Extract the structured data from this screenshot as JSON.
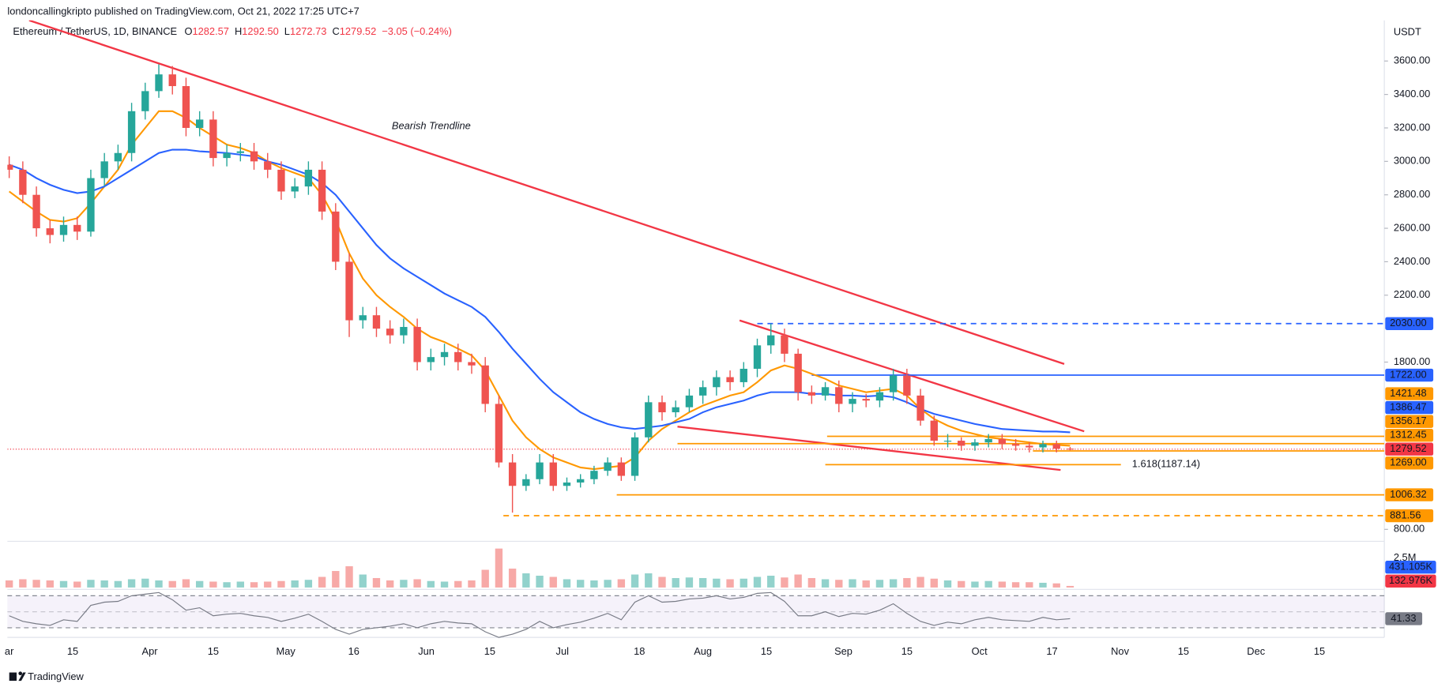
{
  "header": {
    "publisher": "londoncallingkripto published on TradingView.com, Oct 21, 2022 17:25 UTC+7",
    "symbol": "Ethereum / TetherUS, 1D, BINANCE",
    "ohlc": [
      {
        "label": "O",
        "value": "1282.57"
      },
      {
        "label": "H",
        "value": "1292.50"
      },
      {
        "label": "L",
        "value": "1272.73"
      },
      {
        "label": "C",
        "value": "1279.52"
      }
    ],
    "change": "−3.05 (−0.24%)"
  },
  "footer": {
    "brand": "TradingView"
  },
  "chart_data": {
    "type": "candlestick",
    "y_unit_label": "USDT",
    "annotation": "Bearish Trendline",
    "x": [
      0,
      3,
      6,
      9,
      12,
      15,
      18,
      21,
      24,
      27,
      30,
      33,
      36,
      39,
      42,
      45,
      48,
      51,
      54,
      57,
      60,
      63,
      66,
      69,
      72,
      75,
      78,
      81,
      84,
      87,
      90,
      93,
      96,
      99,
      102,
      105,
      108,
      111,
      114,
      117,
      120,
      123,
      126,
      129,
      132,
      135,
      138,
      141,
      144,
      147,
      150,
      153,
      156,
      159,
      162,
      165,
      168,
      171,
      174,
      177,
      180,
      183,
      186,
      189,
      192,
      195,
      198,
      201,
      204,
      207,
      210,
      213,
      216,
      219,
      222,
      225,
      228,
      231,
      234
    ],
    "open": [
      2980,
      2950,
      2800,
      2600,
      2560,
      2620,
      2580,
      2900,
      3000,
      3050,
      3300,
      3420,
      3520,
      3450,
      3200,
      3250,
      3020,
      3050,
      3060,
      3000,
      2950,
      2820,
      2850,
      2950,
      2700,
      2400,
      2050,
      2080,
      2000,
      1960,
      2010,
      1800,
      1830,
      1860,
      1800,
      1780,
      1550,
      1200,
      1060,
      1100,
      1200,
      1060,
      1080,
      1100,
      1150,
      1200,
      1120,
      1350,
      1560,
      1500,
      1530,
      1600,
      1650,
      1710,
      1680,
      1760,
      1900,
      1960,
      1850,
      1620,
      1600,
      1650,
      1550,
      1580,
      1570,
      1620,
      1720,
      1600,
      1450,
      1330,
      1330,
      1300,
      1320,
      1340,
      1310,
      1300,
      1290,
      1310,
      1282.57
    ],
    "high": [
      3030,
      3000,
      2850,
      2650,
      2670,
      2670,
      2950,
      3050,
      3100,
      3350,
      3470,
      3580,
      3570,
      3500,
      3300,
      3300,
      3100,
      3110,
      3110,
      3050,
      3000,
      2900,
      3000,
      3000,
      2750,
      2450,
      2130,
      2130,
      2050,
      2060,
      2060,
      1880,
      1910,
      1910,
      1850,
      1830,
      1600,
      1250,
      1130,
      1250,
      1250,
      1110,
      1130,
      1180,
      1230,
      1230,
      1380,
      1600,
      1600,
      1570,
      1640,
      1690,
      1750,
      1750,
      1800,
      1940,
      2030,
      2000,
      1880,
      1660,
      1680,
      1690,
      1620,
      1610,
      1650,
      1760,
      1760,
      1640,
      1480,
      1370,
      1350,
      1340,
      1370,
      1370,
      1340,
      1320,
      1330,
      1330,
      1292.5
    ],
    "low": [
      2900,
      2750,
      2550,
      2510,
      2520,
      2530,
      2550,
      2850,
      2950,
      3000,
      3250,
      3380,
      3400,
      3150,
      3150,
      2970,
      2970,
      3000,
      2950,
      2900,
      2770,
      2780,
      2800,
      2650,
      2350,
      1950,
      2000,
      1950,
      1910,
      1910,
      1750,
      1750,
      1780,
      1750,
      1730,
      1500,
      1170,
      900,
      1030,
      1070,
      1030,
      1030,
      1050,
      1070,
      1120,
      1090,
      1090,
      1320,
      1450,
      1470,
      1500,
      1550,
      1600,
      1630,
      1650,
      1710,
      1850,
      1800,
      1570,
      1550,
      1570,
      1500,
      1500,
      1530,
      1530,
      1570,
      1550,
      1420,
      1300,
      1290,
      1270,
      1270,
      1290,
      1280,
      1270,
      1260,
      1260,
      1260,
      1272.73
    ],
    "close": [
      2950,
      2800,
      2600,
      2560,
      2620,
      2580,
      2900,
      3000,
      3050,
      3300,
      3420,
      3520,
      3450,
      3200,
      3250,
      3020,
      3050,
      3060,
      3000,
      2950,
      2820,
      2850,
      2950,
      2700,
      2400,
      2050,
      2080,
      2000,
      1960,
      2010,
      1800,
      1830,
      1860,
      1800,
      1780,
      1550,
      1200,
      1060,
      1100,
      1200,
      1060,
      1080,
      1100,
      1150,
      1200,
      1120,
      1350,
      1560,
      1500,
      1530,
      1600,
      1650,
      1710,
      1680,
      1760,
      1900,
      1960,
      1850,
      1620,
      1600,
      1650,
      1550,
      1580,
      1570,
      1620,
      1720,
      1600,
      1450,
      1330,
      1330,
      1300,
      1320,
      1340,
      1310,
      1300,
      1290,
      1310,
      1282.57,
      1279.52
    ],
    "up_color": "#26a69a",
    "down_color": "#ef5350",
    "last_price_color": "#f23645",
    "moving_averages": [
      {
        "color": "#ff9800",
        "values": [
          2820,
          2760,
          2700,
          2650,
          2640,
          2660,
          2750,
          2850,
          2950,
          3100,
          3200,
          3300,
          3300,
          3260,
          3200,
          3150,
          3100,
          3080,
          3050,
          3000,
          2960,
          2930,
          2900,
          2800,
          2650,
          2450,
          2300,
          2200,
          2130,
          2070,
          2000,
          1950,
          1920,
          1880,
          1840,
          1750,
          1600,
          1450,
          1350,
          1280,
          1230,
          1200,
          1170,
          1160,
          1170,
          1180,
          1230,
          1330,
          1400,
          1450,
          1500,
          1540,
          1570,
          1600,
          1620,
          1680,
          1750,
          1780,
          1760,
          1730,
          1700,
          1660,
          1640,
          1620,
          1630,
          1640,
          1600,
          1520,
          1460,
          1420,
          1390,
          1370,
          1350,
          1340,
          1330,
          1320,
          1310,
          1305,
          1300
        ]
      },
      {
        "color": "#2962ff",
        "values": [
          2980,
          2950,
          2900,
          2860,
          2830,
          2810,
          2820,
          2850,
          2900,
          2950,
          3000,
          3050,
          3070,
          3070,
          3060,
          3055,
          3050,
          3040,
          3030,
          3000,
          2980,
          2950,
          2920,
          2870,
          2800,
          2700,
          2600,
          2500,
          2420,
          2360,
          2310,
          2260,
          2210,
          2170,
          2130,
          2070,
          1980,
          1880,
          1790,
          1700,
          1620,
          1560,
          1500,
          1460,
          1430,
          1410,
          1400,
          1410,
          1420,
          1440,
          1460,
          1500,
          1530,
          1550,
          1570,
          1600,
          1620,
          1620,
          1620,
          1610,
          1610,
          1600,
          1600,
          1595,
          1600,
          1590,
          1560,
          1520,
          1490,
          1470,
          1450,
          1430,
          1415,
          1400,
          1395,
          1390,
          1385,
          1385,
          1380
        ]
      }
    ],
    "trendlines": [
      {
        "color": "#f23645",
        "points": [
          [
            4.4,
            3843
          ],
          [
            232.7,
            1789
          ]
        ]
      },
      {
        "color": "#f23645",
        "points": [
          [
            161.1,
            2049
          ],
          [
            237.1,
            1386
          ]
        ]
      },
      {
        "color": "#f23645",
        "points": [
          [
            147.4,
            1414
          ],
          [
            231.9,
            1155
          ]
        ]
      }
    ],
    "levels": [
      {
        "value": 2030,
        "label": "2030.00",
        "color": "#2962ff",
        "text_color": "#ffffff",
        "start": 165,
        "dashed": true
      },
      {
        "value": 1722,
        "label": "1722.00",
        "color": "#2962ff",
        "text_color": "#ffffff",
        "start": 177
      },
      {
        "value": 1356.17,
        "label": "1356.17",
        "color": "#ff9800",
        "text_color": "#131722",
        "start": 180.4
      },
      {
        "value": 1312.45,
        "label": "1312.45",
        "color": "#ff9800",
        "text_color": "#131722",
        "start": 147.4
      },
      {
        "value": 1269,
        "label": "1269.00",
        "color": "#ff9800",
        "text_color": "#131722",
        "start": 225.8
      },
      {
        "value": 1006.32,
        "label": "1006.32",
        "color": "#ff9800",
        "text_color": "#131722",
        "start": 134
      },
      {
        "value": 881.56,
        "label": "881.56",
        "color": "#ff9800",
        "text_color": "#131722",
        "start": 109,
        "dashed": true
      }
    ],
    "axis_labels": [
      {
        "value": 1421.48,
        "label": "1421.48",
        "color": "#ff9800",
        "text_color": "#131722"
      },
      {
        "value": 1386.47,
        "label": "1386.47",
        "color": "#2962ff",
        "text_color": "#ffffff"
      }
    ],
    "fib": {
      "value": 1187.14,
      "label": "1.618(1187.14)",
      "start": 180,
      "end": 245.2,
      "color": "#ff9800"
    },
    "xlim": [
      -0.4,
      303.3
    ],
    "xticks": [
      {
        "value": 0,
        "label": "ar"
      },
      {
        "value": 14,
        "label": "15"
      },
      {
        "value": 31,
        "label": "Apr"
      },
      {
        "value": 45,
        "label": "15"
      },
      {
        "value": 61,
        "label": "May"
      },
      {
        "value": 76,
        "label": "16"
      },
      {
        "value": 92,
        "label": "Jun"
      },
      {
        "value": 106,
        "label": "15"
      },
      {
        "value": 122,
        "label": "Jul"
      },
      {
        "value": 139,
        "label": "18"
      },
      {
        "value": 153,
        "label": "Aug"
      },
      {
        "value": 167,
        "label": "15"
      },
      {
        "value": 184,
        "label": "Sep"
      },
      {
        "value": 198,
        "label": "15"
      },
      {
        "value": 214,
        "label": "Oct"
      },
      {
        "value": 230,
        "label": "17"
      },
      {
        "value": 245,
        "label": "Nov"
      },
      {
        "value": 259,
        "label": "15"
      },
      {
        "value": 275,
        "label": "Dec"
      },
      {
        "value": 289,
        "label": "15"
      }
    ],
    "ylim": [
      734,
      3843
    ],
    "yticks": [
      {
        "value": 800,
        "label": "800.00"
      },
      {
        "value": 1800,
        "label": "1800.00"
      },
      {
        "value": 2200,
        "label": "2200.00"
      },
      {
        "value": 2400,
        "label": "2400.00"
      },
      {
        "value": 2600,
        "label": "2600.00"
      },
      {
        "value": 2800,
        "label": "2800.00"
      },
      {
        "value": 3000,
        "label": "3000.00"
      },
      {
        "value": 3200,
        "label": "3200.00"
      },
      {
        "value": 3400,
        "label": "3400.00"
      },
      {
        "value": 3600,
        "label": "3600.00"
      }
    ],
    "volume": {
      "values": [
        600000,
        700000,
        650000,
        600000,
        550000,
        500000,
        650000,
        600000,
        550000,
        700000,
        750000,
        600000,
        550000,
        700000,
        550000,
        500000,
        450000,
        500000,
        450000,
        500000,
        550000,
        600000,
        650000,
        900000,
        1400000,
        1800000,
        1100000,
        800000,
        600000,
        650000,
        700000,
        550000,
        500000,
        550000,
        600000,
        1500000,
        3300000,
        1600000,
        1200000,
        1000000,
        900000,
        700000,
        650000,
        600000,
        650000,
        700000,
        1100000,
        1200000,
        900000,
        800000,
        850000,
        800000,
        750000,
        700000,
        750000,
        900000,
        1000000,
        850000,
        1100000,
        800000,
        700000,
        650000,
        700000,
        600000,
        650000,
        700000,
        800000,
        900000,
        750000,
        600000,
        550000,
        500000,
        550000,
        500000,
        450000,
        450000,
        400000,
        350000,
        132976
      ],
      "ylim": [
        0,
        3600000
      ],
      "yticks": [
        {
          "value": 2500000,
          "label": "2.5M"
        }
      ],
      "labels": [
        {
          "label": "431.105K",
          "color": "#2962ff"
        },
        {
          "label": "132.976K",
          "color": "#f23645"
        }
      ]
    },
    "rsi": {
      "values": [
        45,
        38,
        35,
        33,
        40,
        38,
        58,
        62,
        63,
        70,
        72,
        74,
        65,
        52,
        55,
        45,
        47,
        48,
        45,
        43,
        38,
        42,
        47,
        38,
        28,
        22,
        28,
        30,
        32,
        35,
        30,
        35,
        38,
        36,
        35,
        25,
        18,
        22,
        28,
        38,
        30,
        34,
        37,
        42,
        48,
        40,
        62,
        70,
        62,
        63,
        66,
        67,
        70,
        66,
        68,
        73,
        74,
        63,
        45,
        45,
        50,
        44,
        48,
        47,
        52,
        60,
        48,
        38,
        33,
        37,
        35,
        40,
        43,
        40,
        39,
        38,
        43,
        40,
        41.33
      ],
      "ylim": [
        18,
        78
      ],
      "levels": [
        70,
        50,
        30
      ],
      "color": "#787b86"
    }
  }
}
